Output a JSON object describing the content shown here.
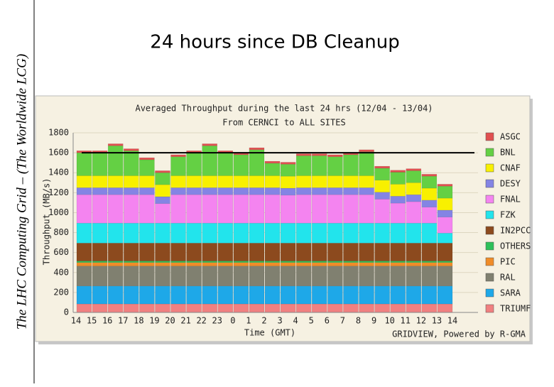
{
  "slide_title": "24 hours since DB Cleanup",
  "sidebar": "The LHC Computing Grid – (The Worldwide LCG)",
  "chart_data": {
    "type": "stacked_bar",
    "title": "Averaged Throughput during the last 24 hrs (12/04 - 13/04)",
    "subtitle": "From CERNCI to ALL SITES",
    "y_label": "Throughput (MB/s)",
    "x_label": "Time (GMT)",
    "footer": "GRIDVIEW, Powered by R-GMA",
    "xticks": [
      "14",
      "15",
      "16",
      "17",
      "18",
      "19",
      "20",
      "21",
      "22",
      "23",
      "0",
      "1",
      "2",
      "3",
      "4",
      "5",
      "6",
      "7",
      "8",
      "9",
      "10",
      "11",
      "12",
      "13",
      "14"
    ],
    "ylim": [
      0,
      1800
    ],
    "yticks": [
      0,
      200,
      400,
      600,
      800,
      1000,
      1200,
      1400,
      1600,
      1800
    ],
    "grid": true,
    "reference_line": 1600,
    "legend": "right",
    "series": [
      {
        "name": "TRIUMF",
        "color": "#f08080",
        "values": [
          85,
          85,
          85,
          85,
          85,
          85,
          85,
          85,
          85,
          85,
          85,
          85,
          85,
          85,
          85,
          85,
          85,
          85,
          85,
          85,
          85,
          85,
          85,
          85
        ]
      },
      {
        "name": "SARA",
        "color": "#1ea8e8",
        "values": [
          180,
          180,
          180,
          180,
          180,
          180,
          180,
          180,
          180,
          180,
          180,
          180,
          180,
          180,
          180,
          180,
          180,
          180,
          180,
          180,
          180,
          180,
          180,
          180
        ]
      },
      {
        "name": "RAL",
        "color": "#808070",
        "values": [
          200,
          200,
          200,
          200,
          200,
          200,
          200,
          200,
          200,
          200,
          200,
          200,
          200,
          200,
          200,
          200,
          200,
          200,
          200,
          200,
          200,
          200,
          200,
          200
        ]
      },
      {
        "name": "PIC",
        "color": "#f08c28",
        "values": [
          35,
          35,
          35,
          35,
          35,
          35,
          35,
          35,
          35,
          35,
          35,
          35,
          35,
          35,
          35,
          35,
          35,
          35,
          35,
          35,
          35,
          35,
          35,
          35
        ]
      },
      {
        "name": "OTHERS",
        "color": "#2ec05a",
        "values": [
          15,
          15,
          15,
          15,
          15,
          15,
          15,
          15,
          15,
          15,
          15,
          15,
          15,
          15,
          15,
          15,
          15,
          15,
          15,
          15,
          15,
          15,
          15,
          15
        ]
      },
      {
        "name": "IN2PCC",
        "color": "#8c4a1e",
        "values": [
          180,
          180,
          180,
          180,
          180,
          180,
          180,
          180,
          180,
          180,
          180,
          180,
          180,
          180,
          180,
          180,
          180,
          180,
          180,
          180,
          180,
          180,
          180,
          180
        ]
      },
      {
        "name": "FZK",
        "color": "#22e4ec",
        "values": [
          200,
          200,
          200,
          200,
          200,
          200,
          200,
          200,
          200,
          200,
          200,
          200,
          200,
          200,
          200,
          200,
          200,
          200,
          200,
          200,
          200,
          200,
          200,
          100
        ]
      },
      {
        "name": "FNAL",
        "color": "#f484f0",
        "values": [
          285,
          285,
          285,
          285,
          285,
          195,
          285,
          285,
          285,
          285,
          285,
          285,
          285,
          280,
          285,
          285,
          285,
          285,
          285,
          240,
          200,
          215,
          160,
          160
        ]
      },
      {
        "name": "DESY",
        "color": "#8484e4",
        "values": [
          70,
          70,
          70,
          70,
          70,
          70,
          70,
          70,
          70,
          70,
          70,
          70,
          70,
          70,
          70,
          70,
          70,
          70,
          70,
          70,
          70,
          70,
          70,
          70
        ]
      },
      {
        "name": "CNAF",
        "color": "#f8f000",
        "values": [
          120,
          120,
          120,
          120,
          120,
          120,
          120,
          120,
          120,
          120,
          120,
          120,
          120,
          120,
          120,
          120,
          120,
          120,
          120,
          120,
          120,
          120,
          120,
          120
        ]
      },
      {
        "name": "BNL",
        "color": "#64d044",
        "values": [
          230,
          230,
          300,
          250,
          160,
          120,
          190,
          230,
          300,
          230,
          210,
          260,
          125,
          120,
          200,
          200,
          190,
          210,
          240,
          120,
          120,
          120,
          120,
          120
        ]
      },
      {
        "name": "ASGC",
        "color": "#e05050",
        "values": [
          20,
          20,
          20,
          20,
          20,
          20,
          20,
          20,
          20,
          20,
          20,
          20,
          20,
          20,
          20,
          20,
          20,
          20,
          20,
          20,
          20,
          20,
          20,
          20
        ]
      }
    ]
  }
}
